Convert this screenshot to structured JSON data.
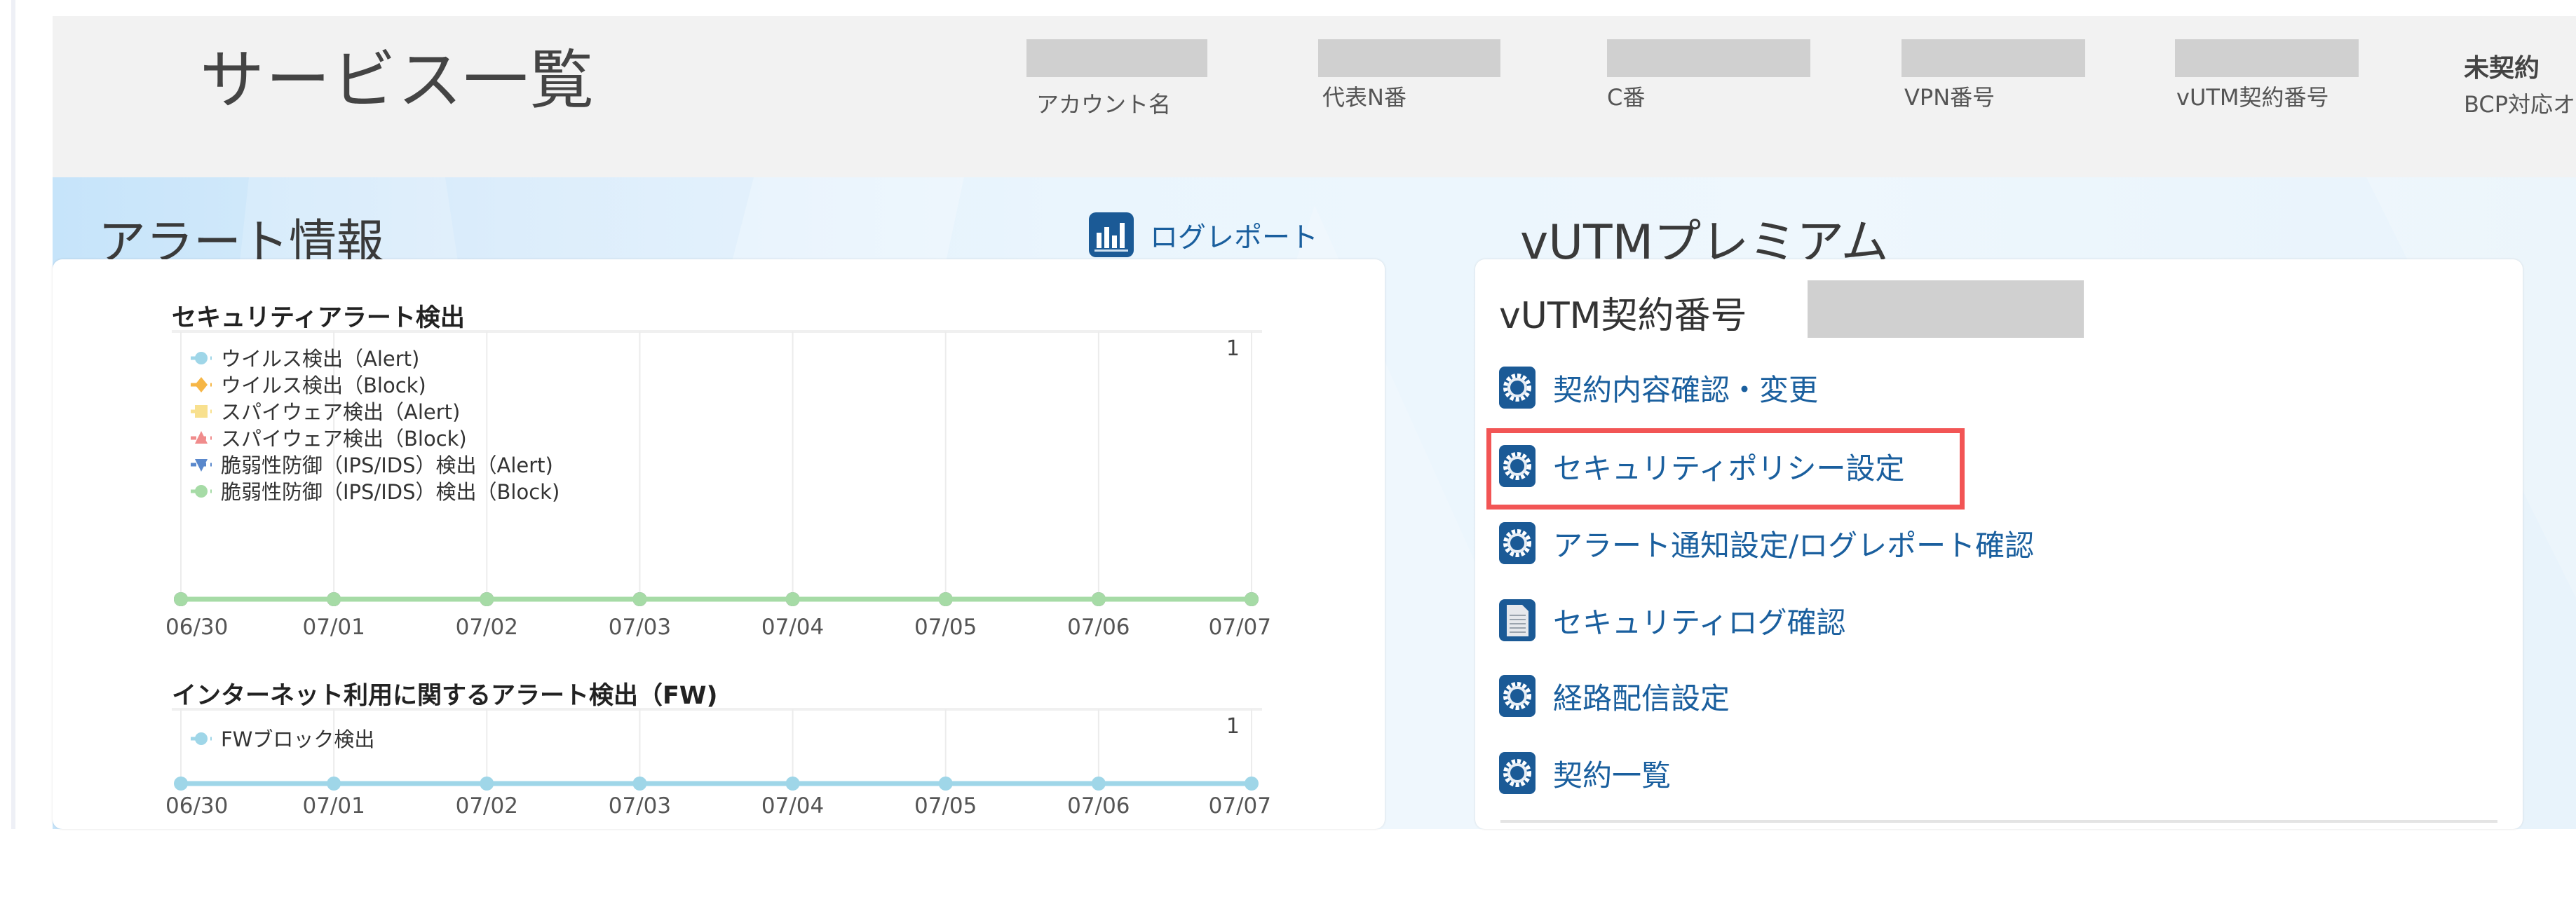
{
  "header": {
    "title": "サービス一覧",
    "fields": [
      {
        "label": "アカウント名"
      },
      {
        "label": "代表N番"
      },
      {
        "label": "C番"
      },
      {
        "label": "VPN番号"
      },
      {
        "label": "vUTM契約番号"
      }
    ],
    "bcp_status": "未契約",
    "bcp_label": "BCP対応オ"
  },
  "alert_section": {
    "title": "アラート情報",
    "log_report_label": "ログレポート"
  },
  "vutm_section": {
    "title": "vUTMプレミアム",
    "contract_label": "vUTM契約番号",
    "links": [
      {
        "label": "契約内容確認・変更",
        "icon": "gear-icon"
      },
      {
        "label": "セキュリティポリシー設定",
        "icon": "gear-icon",
        "highlighted": true
      },
      {
        "label": "アラート通知設定/ログレポート確認",
        "icon": "gear-icon"
      },
      {
        "label": "セキュリティログ確認",
        "icon": "document-icon"
      },
      {
        "label": "経路配信設定",
        "icon": "gear-icon"
      },
      {
        "label": "契約一覧",
        "icon": "gear-icon"
      }
    ],
    "highlight_color": "#f25555",
    "link_color": "#1a5f9e"
  },
  "chart_data": [
    {
      "type": "line",
      "title": "セキュリティアラート検出",
      "categories": [
        "06/30",
        "07/01",
        "07/02",
        "07/03",
        "07/04",
        "07/05",
        "07/06",
        "07/07"
      ],
      "ylim": [
        0,
        1
      ],
      "ytick_labels": [
        "1"
      ],
      "grid": true,
      "legend_position": "top-left",
      "series": [
        {
          "name": "ウイルス検出（Alert)",
          "marker": "circle",
          "color": "#9fd6e8",
          "values": [
            0,
            0,
            0,
            0,
            0,
            0,
            0,
            0
          ]
        },
        {
          "name": "ウイルス検出（Block)",
          "marker": "diamond",
          "color": "#f6b646",
          "values": [
            0,
            0,
            0,
            0,
            0,
            0,
            0,
            0
          ]
        },
        {
          "name": "スパイウェア検出（Alert)",
          "marker": "square",
          "color": "#f8e08e",
          "values": [
            0,
            0,
            0,
            0,
            0,
            0,
            0,
            0
          ]
        },
        {
          "name": "スパイウェア検出（Block)",
          "marker": "triangle",
          "color": "#f08c8c",
          "values": [
            0,
            0,
            0,
            0,
            0,
            0,
            0,
            0
          ]
        },
        {
          "name": "脆弱性防御（IPS/IDS）検出（Alert)",
          "marker": "triangle-down",
          "color": "#5a88cc",
          "values": [
            0,
            0,
            0,
            0,
            0,
            0,
            0,
            0
          ]
        },
        {
          "name": "脆弱性防御（IPS/IDS）検出（Block)",
          "marker": "circle",
          "color": "#a6dba6",
          "values": [
            0,
            0,
            0,
            0,
            0,
            0,
            0,
            0
          ]
        }
      ]
    },
    {
      "type": "line",
      "title": "インターネット利用に関するアラート検出（FW)",
      "categories": [
        "06/30",
        "07/01",
        "07/02",
        "07/03",
        "07/04",
        "07/05",
        "07/06",
        "07/07"
      ],
      "ylim": [
        0,
        1
      ],
      "ytick_labels": [
        "1"
      ],
      "grid": true,
      "legend_position": "top-left",
      "series": [
        {
          "name": "FWブロック検出",
          "marker": "circle",
          "color": "#9fd6e8",
          "values": [
            0,
            0,
            0,
            0,
            0,
            0,
            0,
            0
          ]
        }
      ]
    }
  ]
}
